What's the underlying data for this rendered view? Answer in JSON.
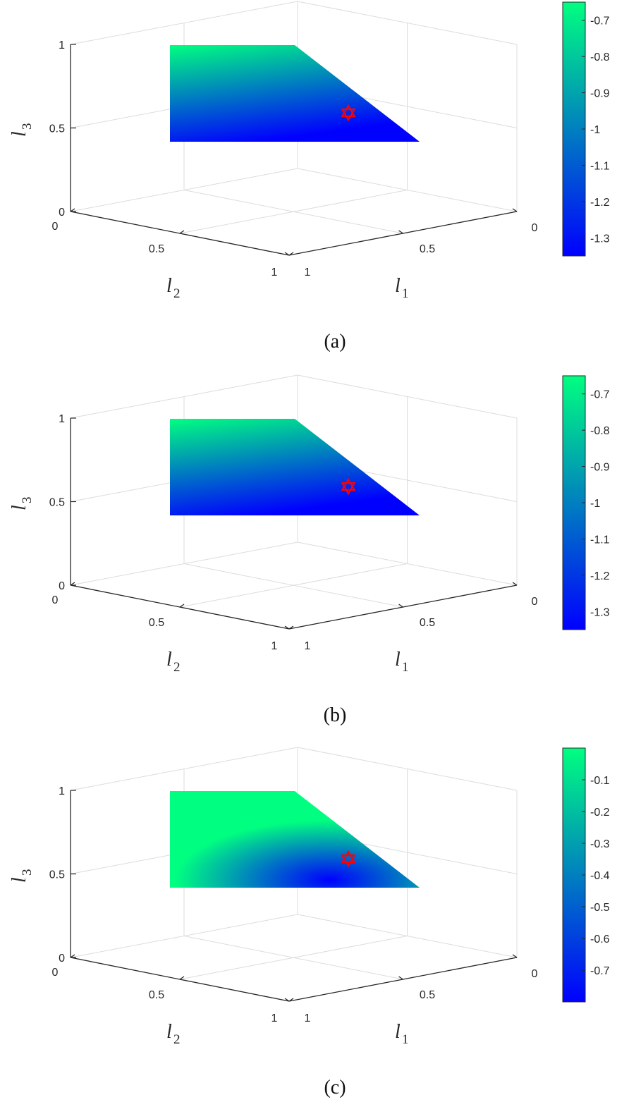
{
  "chart_data": [
    {
      "type": "scatter",
      "caption": "(a)",
      "axes": {
        "x": {
          "symbol": "l",
          "sub": "1",
          "ticks": [
            "0",
            "0.5",
            "1"
          ],
          "range": [
            0,
            1
          ]
        },
        "y": {
          "symbol": "l",
          "sub": "2",
          "ticks": [
            "0",
            "0.5",
            "1"
          ],
          "range": [
            0,
            1
          ]
        },
        "z": {
          "symbol": "l",
          "sub": "3",
          "ticks": [
            "0",
            "0.5",
            "1"
          ],
          "range": [
            0,
            1
          ]
        }
      },
      "grid": true,
      "colormap": {
        "low": "#0000ff",
        "high": "#00ff80",
        "clim": [
          -1.35,
          -0.65
        ],
        "ticks": [
          "-0.7",
          "-0.8",
          "-0.9",
          "-1",
          "-1.1",
          "-1.2",
          "-1.3"
        ],
        "tick_values": [
          -0.7,
          -0.8,
          -0.9,
          -1,
          -1.1,
          -1.2,
          -1.3
        ]
      },
      "region": {
        "z_range": [
          0.45,
          1.0
        ],
        "color_high_at": "top",
        "color_low_at": "bottom-right"
      },
      "optimum_marker": {
        "shape": "hexagram",
        "color": "#ff0000",
        "l1": 0.4,
        "l2": 0.4,
        "l3": 0.6
      }
    },
    {
      "type": "scatter",
      "caption": "(b)",
      "axes": {
        "x": {
          "symbol": "l",
          "sub": "1",
          "ticks": [
            "0",
            "0.5",
            "1"
          ],
          "range": [
            0,
            1
          ]
        },
        "y": {
          "symbol": "l",
          "sub": "2",
          "ticks": [
            "0",
            "0.5",
            "1"
          ],
          "range": [
            0,
            1
          ]
        },
        "z": {
          "symbol": "l",
          "sub": "3",
          "ticks": [
            "0",
            "0.5",
            "1"
          ],
          "range": [
            0,
            1
          ]
        }
      },
      "grid": true,
      "colormap": {
        "low": "#0000ff",
        "high": "#00ff80",
        "clim": [
          -1.35,
          -0.65
        ],
        "ticks": [
          "-0.7",
          "-0.8",
          "-0.9",
          "-1",
          "-1.1",
          "-1.2",
          "-1.3"
        ],
        "tick_values": [
          -0.7,
          -0.8,
          -0.9,
          -1,
          -1.1,
          -1.2,
          -1.3
        ]
      },
      "region": {
        "z_range": [
          0.45,
          1.0
        ],
        "color_high_at": "top",
        "color_low_at": "bottom-right"
      },
      "optimum_marker": {
        "shape": "hexagram",
        "color": "#ff0000",
        "l1": 0.4,
        "l2": 0.4,
        "l3": 0.6
      }
    },
    {
      "type": "scatter",
      "caption": "(c)",
      "axes": {
        "x": {
          "symbol": "l",
          "sub": "1",
          "ticks": [
            "0",
            "0.5",
            "1"
          ],
          "range": [
            0,
            1
          ]
        },
        "y": {
          "symbol": "l",
          "sub": "2",
          "ticks": [
            "0",
            "0.5",
            "1"
          ],
          "range": [
            0,
            1
          ]
        },
        "z": {
          "symbol": "l",
          "sub": "3",
          "ticks": [
            "0",
            "0.5",
            "1"
          ],
          "range": [
            0,
            1
          ]
        }
      },
      "grid": true,
      "colormap": {
        "low": "#0000ff",
        "high": "#00ff80",
        "clim": [
          -0.8,
          0
        ],
        "ticks": [
          "-0.1",
          "-0.2",
          "-0.3",
          "-0.4",
          "-0.5",
          "-0.6",
          "-0.7"
        ],
        "tick_values": [
          -0.1,
          -0.2,
          -0.3,
          -0.4,
          -0.5,
          -0.6,
          -0.7
        ]
      },
      "region": {
        "z_range": [
          0.45,
          1.0
        ],
        "color_high_at": "left-and-top",
        "color_low_at": "center-bottom"
      },
      "optimum_marker": {
        "shape": "hexagram",
        "color": "#ff0000",
        "l1": 0.4,
        "l2": 0.4,
        "l3": 0.6
      }
    }
  ]
}
